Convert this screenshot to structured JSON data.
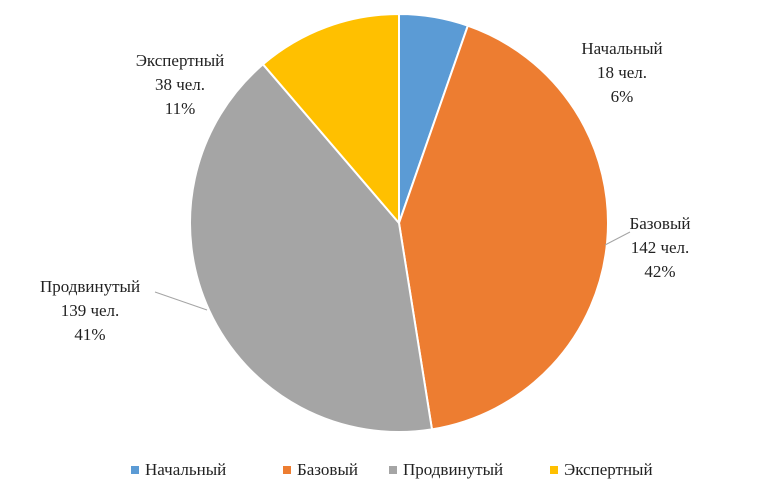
{
  "chart_data": {
    "type": "pie",
    "categories": [
      "Начальный",
      "Базовый",
      "Продвинутый",
      "Экспертный"
    ],
    "values": [
      18,
      142,
      139,
      38
    ],
    "value_labels": [
      "18 чел.",
      "142 чел.",
      "139 чел.",
      "38 чел."
    ],
    "percent_labels": [
      "6%",
      "42%",
      "41%",
      "11%"
    ],
    "colors": [
      "#5b9bd5",
      "#ed7d31",
      "#a5a5a5",
      "#ffc000"
    ],
    "legend": "bottom"
  }
}
